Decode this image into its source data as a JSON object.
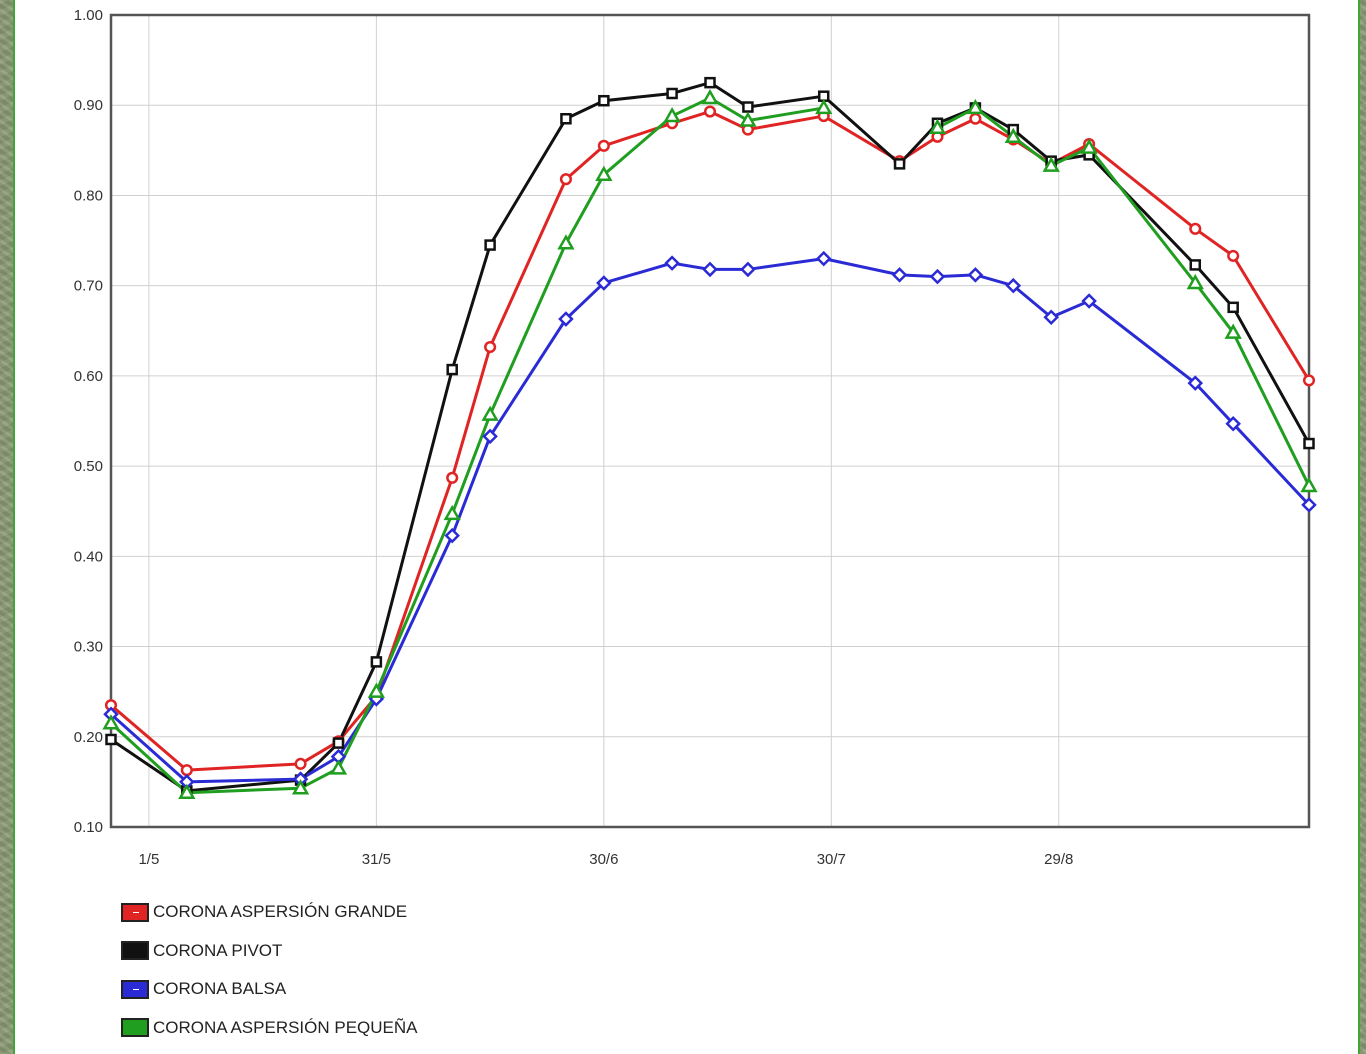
{
  "chart_data": {
    "type": "line",
    "title": "",
    "xlabel": "",
    "ylabel": "",
    "grid": true,
    "legend_position": "bottom-left",
    "x_ticks": [
      "1/5",
      "31/5",
      "30/6",
      "30/7",
      "29/8"
    ],
    "y_ticks": [
      "0.10",
      "0.20",
      "0.30",
      "0.40",
      "0.50",
      "0.60",
      "0.70",
      "0.80",
      "0.90",
      "1.00"
    ],
    "ylim": [
      0.1,
      1.0
    ],
    "x_dates": [
      "2021-04-26",
      "2021-05-06",
      "2021-05-21",
      "2021-05-26",
      "2021-05-31",
      "2021-06-10",
      "2021-06-15",
      "2021-06-25",
      "2021-06-30",
      "2021-07-09",
      "2021-07-14",
      "2021-07-19",
      "2021-07-29",
      "2021-08-08",
      "2021-08-13",
      "2021-08-18",
      "2021-08-23",
      "2021-08-28",
      "2021-09-02",
      "2021-09-16",
      "2021-09-21",
      "2021-10-01"
    ],
    "xlim": [
      "2021-04-26",
      "2021-10-01"
    ],
    "series": [
      {
        "name": "CORONA ASPERSIÓN GRANDE",
        "color": "#e02424",
        "marker": "circle",
        "values": [
          0.235,
          0.163,
          0.17,
          0.195,
          0.245,
          0.487,
          0.632,
          0.818,
          0.855,
          0.88,
          0.893,
          0.873,
          0.888,
          0.838,
          0.865,
          0.885,
          0.862,
          0.835,
          0.857,
          0.763,
          0.733,
          0.595
        ]
      },
      {
        "name": "CORONA PIVOT",
        "color": "#111111",
        "marker": "square",
        "values": [
          0.197,
          0.14,
          0.152,
          0.193,
          0.283,
          0.607,
          0.745,
          0.885,
          0.905,
          0.913,
          0.925,
          0.898,
          0.91,
          0.835,
          0.88,
          0.897,
          0.873,
          0.838,
          0.845,
          0.723,
          0.676,
          0.525
        ]
      },
      {
        "name": "CORONA BALSA",
        "color": "#2b2bd6",
        "marker": "diamond",
        "values": [
          0.225,
          0.15,
          0.153,
          0.178,
          0.242,
          0.423,
          0.533,
          0.663,
          0.703,
          0.725,
          0.718,
          0.718,
          0.73,
          0.712,
          0.71,
          0.712,
          0.7,
          0.665,
          0.683,
          0.592,
          0.547,
          0.457
        ]
      },
      {
        "name": "CORONA ASPERSIÓN PEQUEÑA",
        "color": "#1f9e1f",
        "marker": "triangle",
        "values": [
          0.215,
          0.138,
          0.143,
          0.165,
          0.25,
          0.447,
          0.557,
          0.747,
          0.823,
          0.888,
          0.908,
          0.883,
          0.897,
          null,
          0.875,
          0.897,
          0.865,
          0.833,
          0.853,
          0.703,
          0.648,
          0.478
        ]
      }
    ]
  },
  "legend": {
    "items": [
      {
        "label": "CORONA ASPERSIÓN GRANDE",
        "color": "#e02424"
      },
      {
        "label": "CORONA PIVOT",
        "color": "#111111"
      },
      {
        "label": "CORONA BALSA",
        "color": "#2b2bd6"
      },
      {
        "label": "CORONA ASPERSIÓN PEQUEÑA",
        "color": "#1f9e1f"
      }
    ]
  }
}
